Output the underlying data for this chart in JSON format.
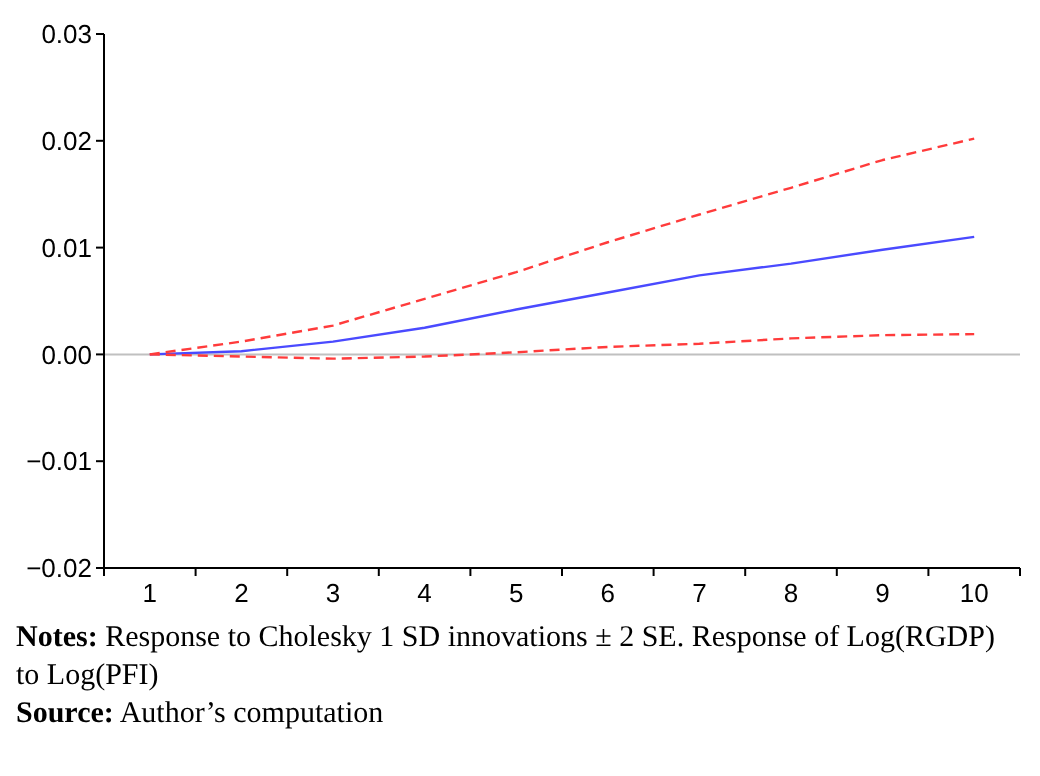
{
  "chart_data": {
    "type": "line",
    "categories": [
      "1",
      "2",
      "3",
      "4",
      "5",
      "6",
      "7",
      "8",
      "9",
      "10"
    ],
    "series": [
      {
        "color": "#4a4aff",
        "line_style": "solid",
        "values": [
          0,
          0.0003,
          0.0012,
          0.0025,
          0.0042,
          0.0058,
          0.0074,
          0.0085,
          0.0098,
          0.011
        ]
      },
      {
        "color": "#ff3b3b",
        "line_style": "dashed",
        "values": [
          0,
          0.0012,
          0.0027,
          0.0052,
          0.0077,
          0.0105,
          0.0131,
          0.0156,
          0.0182,
          0.0202
        ]
      },
      {
        "color": "#ff3b3b",
        "line_style": "dashed",
        "values": [
          0,
          -0.0002,
          -0.0004,
          -0.0002,
          0.0002,
          0.0007,
          0.001,
          0.0015,
          0.0018,
          0.0019
        ]
      }
    ],
    "ylim": [
      -0.02,
      0.03
    ],
    "yticks": [
      {
        "value": -0.02,
        "label": "−0.02"
      },
      {
        "value": -0.01,
        "label": "−0.01"
      },
      {
        "value": 0,
        "label": "0.00"
      },
      {
        "value": 0.01,
        "label": "0.01"
      },
      {
        "value": 0.02,
        "label": "0.02"
      },
      {
        "value": 0.03,
        "label": "0.03"
      }
    ],
    "ref_lines": [
      {
        "axis": "y",
        "value": 0,
        "color": "#c0c0c0"
      }
    ],
    "grid": false,
    "annotations": [
      "Notes: Response to Cholesky 1 SD innovations ± 2 SE. Response of Log(RGDP) to Log(PFI)",
      "Source: Author’s computation"
    ]
  }
}
